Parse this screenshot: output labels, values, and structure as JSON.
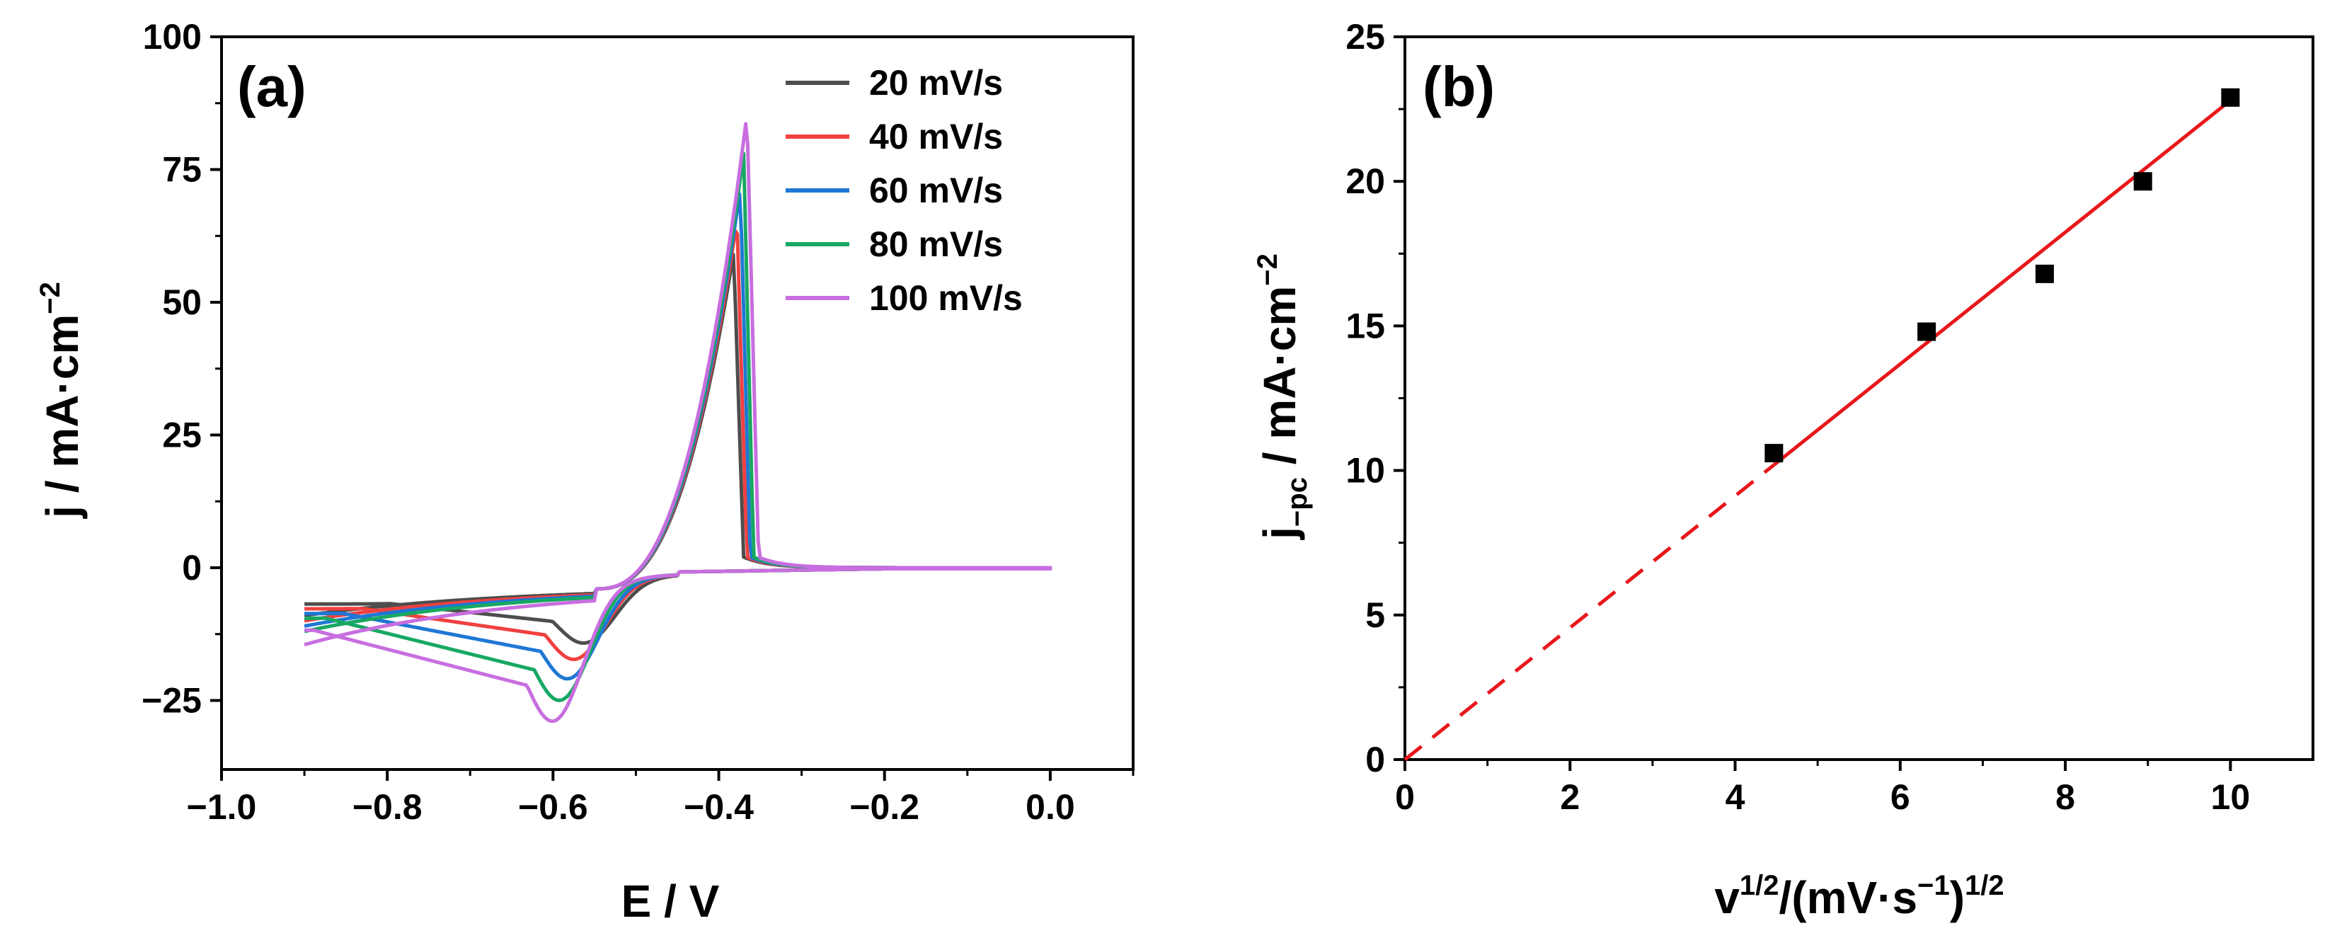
{
  "figure": {
    "panel_a_label": "(a)",
    "panel_b_label": "(b)"
  },
  "chart_data": [
    {
      "type": "line",
      "panel": "(a)",
      "title": "",
      "xlabel": "E / V",
      "ylabel": "j / mA·cm",
      "ylabel_sup": "−2",
      "xlim": [
        -1.0,
        0.1
      ],
      "ylim": [
        -38,
        100
      ],
      "xticks": [
        -1.0,
        -0.8,
        -0.6,
        -0.4,
        -0.2,
        0.0
      ],
      "xtick_labels": [
        "−1.0",
        "−0.8",
        "−0.6",
        "−0.4",
        "−0.2",
        "0.0"
      ],
      "yticks": [
        -25,
        0,
        25,
        50,
        75,
        100
      ],
      "ytick_labels": [
        "−25",
        "0",
        "25",
        "50",
        "75",
        "100"
      ],
      "legend_position": "top-right",
      "series": [
        {
          "name": "20 mV/s",
          "color": "#4d4d4d",
          "params": {
            "peak_a": 59.5,
            "peak_e": -0.382,
            "drop_e": -0.37,
            "cath": -10.8,
            "cath_e": -0.56,
            "start": -5.5
          }
        },
        {
          "name": "40 mV/s",
          "color": "#f04040",
          "params": {
            "peak_a": 65.5,
            "peak_e": -0.378,
            "drop_e": -0.366,
            "cath": -13.5,
            "cath_e": -0.572,
            "start": -6.5
          }
        },
        {
          "name": "60 mV/s",
          "color": "#1f77d4",
          "params": {
            "peak_a": 71.5,
            "peak_e": -0.374,
            "drop_e": -0.362,
            "cath": -16.8,
            "cath_e": -0.58,
            "start": -7.5
          }
        },
        {
          "name": "80 mV/s",
          "color": "#17a862",
          "params": {
            "peak_a": 78.0,
            "peak_e": -0.37,
            "drop_e": -0.358,
            "cath": -20.5,
            "cath_e": -0.59,
            "start": -8.5
          }
        },
        {
          "name": "100 mV/s",
          "color": "#c86ee0",
          "params": {
            "peak_a": 85.5,
            "peak_e": -0.366,
            "drop_e": -0.352,
            "cath": -23.5,
            "cath_e": -0.598,
            "start": -11.0
          }
        }
      ]
    },
    {
      "type": "scatter",
      "panel": "(b)",
      "title": "",
      "xlabel": "v",
      "xlabel_sup1": "1/2",
      "xlabel_mid": "/(mV·s",
      "xlabel_sup2": "−1",
      "xlabel_end": ")",
      "xlabel_sup3": "1/2",
      "ylabel": "j",
      "ylabel_sub": "−pc",
      "ylabel_rest": " / mA·cm",
      "ylabel_sup": "−2",
      "xlim": [
        0,
        11
      ],
      "ylim": [
        0,
        25
      ],
      "xticks": [
        0,
        2,
        4,
        6,
        8,
        10
      ],
      "xtick_labels": [
        "0",
        "2",
        "4",
        "6",
        "8",
        "10"
      ],
      "yticks": [
        0,
        5,
        10,
        15,
        20,
        25
      ],
      "ytick_labels": [
        "0",
        "5",
        "10",
        "15",
        "20",
        "25"
      ],
      "points": {
        "x": [
          4.47,
          6.32,
          7.75,
          8.94,
          10.0
        ],
        "y": [
          10.6,
          14.8,
          16.8,
          20.0,
          22.9
        ]
      },
      "fit_line": {
        "color": "#e8171b",
        "slope": 2.28,
        "intercept": 0.0,
        "solid_from": 4.47,
        "solid_to": 10.0,
        "dashed_from": 0.0,
        "dashed_to": 4.47
      }
    }
  ]
}
